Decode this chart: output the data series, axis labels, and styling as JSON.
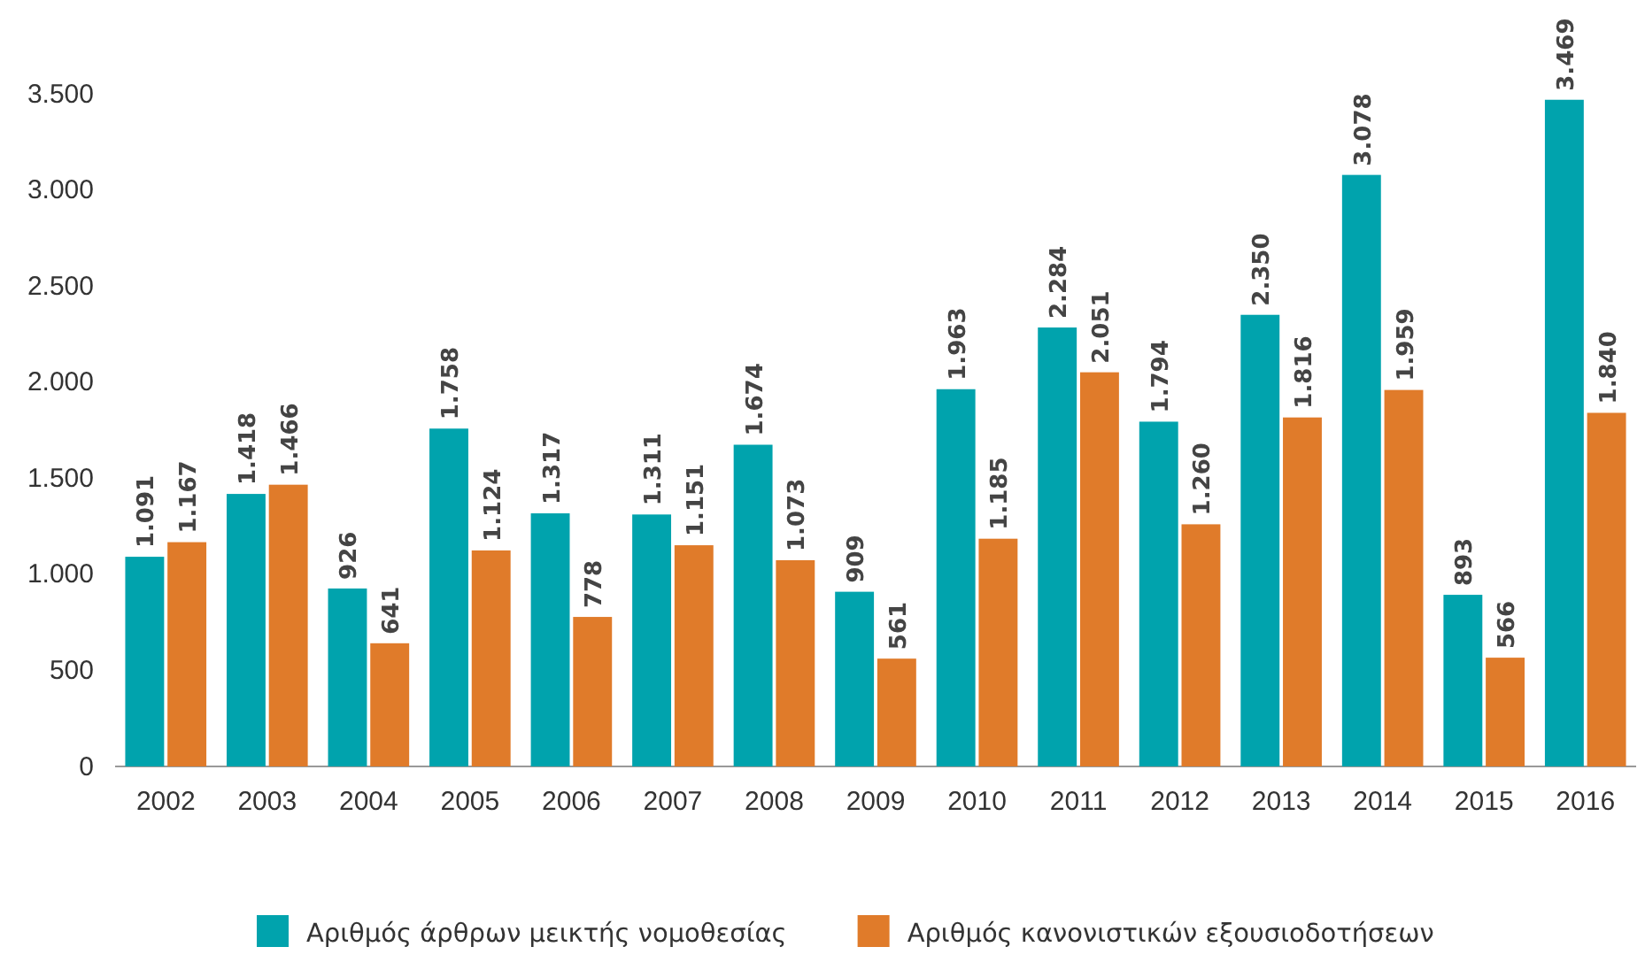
{
  "chart_data": {
    "type": "bar",
    "categories": [
      "2002",
      "2003",
      "2004",
      "2005",
      "2006",
      "2007",
      "2008",
      "2009",
      "2010",
      "2011",
      "2012",
      "2013",
      "2014",
      "2015",
      "2016"
    ],
    "series": [
      {
        "name": "Αριθμός άρθρων μεικτής νομοθεσίας",
        "color": "#00a3ad",
        "values": [
          1091,
          1418,
          926,
          1758,
          1317,
          1311,
          1674,
          909,
          1963,
          2284,
          1794,
          2350,
          3078,
          893,
          3469
        ],
        "value_labels": [
          "1.091",
          "1.418",
          "926",
          "1.758",
          "1.317",
          "1.311",
          "1.674",
          "909",
          "1.963",
          "2.284",
          "1.794",
          "2.350",
          "3.078",
          "893",
          "3.469"
        ]
      },
      {
        "name": "Αριθμός κανονιστικών εξουσιοδοτήσεων",
        "color": "#e07b2a",
        "values": [
          1167,
          1466,
          641,
          1124,
          778,
          1151,
          1073,
          561,
          1185,
          2051,
          1260,
          1816,
          1959,
          566,
          1840
        ],
        "value_labels": [
          "1.167",
          "1.466",
          "641",
          "1.124",
          "778",
          "1.151",
          "1.073",
          "561",
          "1.185",
          "2.051",
          "1.260",
          "1.816",
          "1.959",
          "566",
          "1.840"
        ]
      }
    ],
    "ylim": [
      0,
      3500
    ],
    "yticks": [
      0,
      500,
      {
        "value": 1000,
        "label": "1.000"
      },
      {
        "value": 1500,
        "label": "1.500"
      },
      {
        "value": 2000,
        "label": "2.000"
      },
      {
        "value": 2500,
        "label": "2.500"
      },
      {
        "value": 3000,
        "label": "3.000"
      },
      {
        "value": 3500,
        "label": "3.500"
      }
    ],
    "grid": false,
    "legend": "bottom"
  }
}
